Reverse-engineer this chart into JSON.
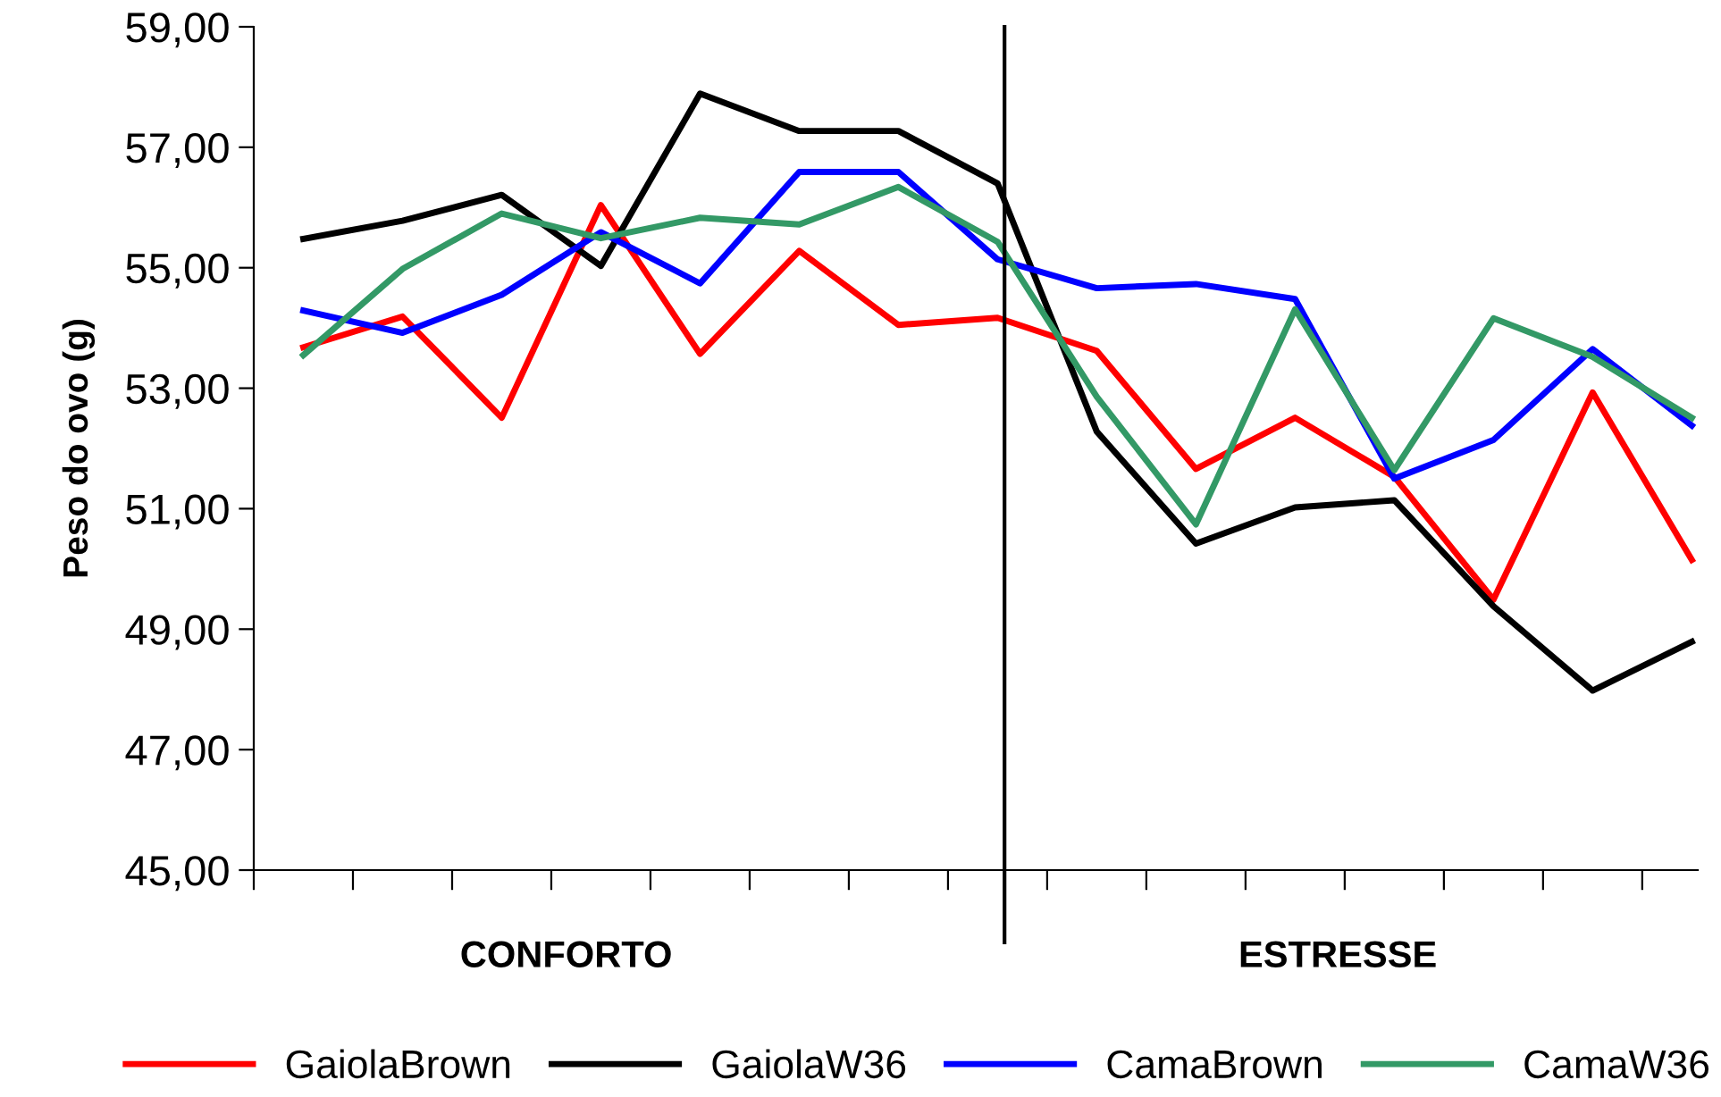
{
  "chart_data": {
    "type": "line",
    "ylabel": "Peso do ovo (g)",
    "categories": [
      null,
      null,
      null,
      null,
      null,
      null,
      null,
      null,
      null,
      null,
      null,
      null,
      null,
      null,
      null
    ],
    "series": [
      {
        "name": "GaiolaBrown",
        "color": "#ff0000",
        "values": [
          53.68,
          54.19,
          52.51,
          56.04,
          53.57,
          55.28,
          54.05,
          54.17,
          53.62,
          51.66,
          52.51,
          51.53,
          49.49,
          52.93,
          50.15
        ]
      },
      {
        "name": "GaiolaW36",
        "color": "#000000",
        "values": [
          55.48,
          55.78,
          56.21,
          55.03,
          57.89,
          57.27,
          57.27,
          56.4,
          52.28,
          50.42,
          51.02,
          51.14,
          49.38,
          47.98,
          48.79
        ]
      },
      {
        "name": "CamaBrown",
        "color": "#0000ff",
        "values": [
          54.29,
          53.92,
          54.55,
          55.59,
          54.74,
          56.59,
          56.59,
          55.14,
          54.66,
          54.73,
          54.48,
          51.5,
          52.14,
          53.65,
          52.38
        ]
      },
      {
        "name": "CamaW36",
        "color": "#339966",
        "values": [
          53.55,
          54.98,
          55.9,
          55.49,
          55.83,
          55.72,
          56.34,
          55.43,
          52.86,
          50.74,
          54.31,
          51.64,
          54.16,
          53.52,
          52.51
        ]
      }
    ],
    "ylim": [
      45,
      59
    ],
    "yticks": [
      {
        "value": 45,
        "label": "45,00"
      },
      {
        "value": 47,
        "label": "47,00"
      },
      {
        "value": 49,
        "label": "49,00"
      },
      {
        "value": 51,
        "label": "51,00"
      },
      {
        "value": 53,
        "label": "53,00"
      },
      {
        "value": 55,
        "label": "55,00"
      },
      {
        "value": 57,
        "label": "57,00"
      },
      {
        "value": 59,
        "label": "59,00"
      }
    ],
    "annotations": [
      "CONFORTO",
      "ESTRESSE"
    ],
    "grid": false,
    "legend": "bottom",
    "marker": "none",
    "line_style": "solid"
  }
}
